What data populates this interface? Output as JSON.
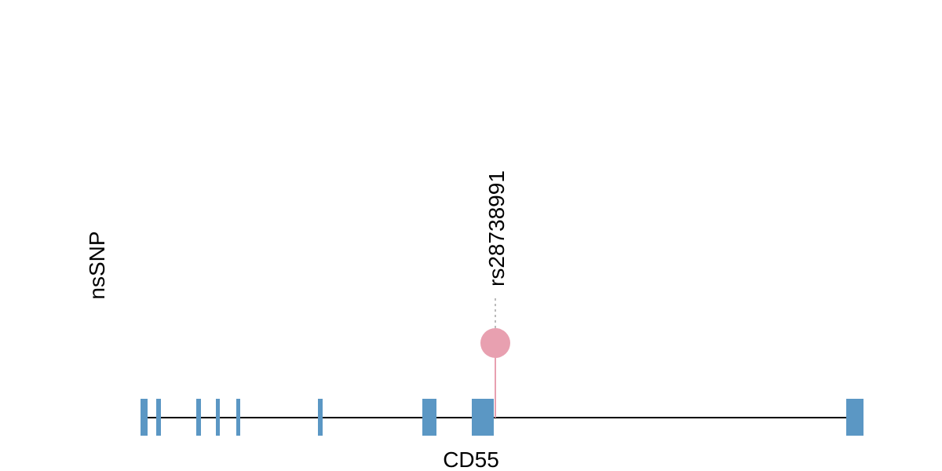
{
  "track": {
    "label": "nsSNP"
  },
  "gene": {
    "name": "CD55"
  },
  "snps": [
    {
      "label": "rs28738991"
    }
  ]
}
